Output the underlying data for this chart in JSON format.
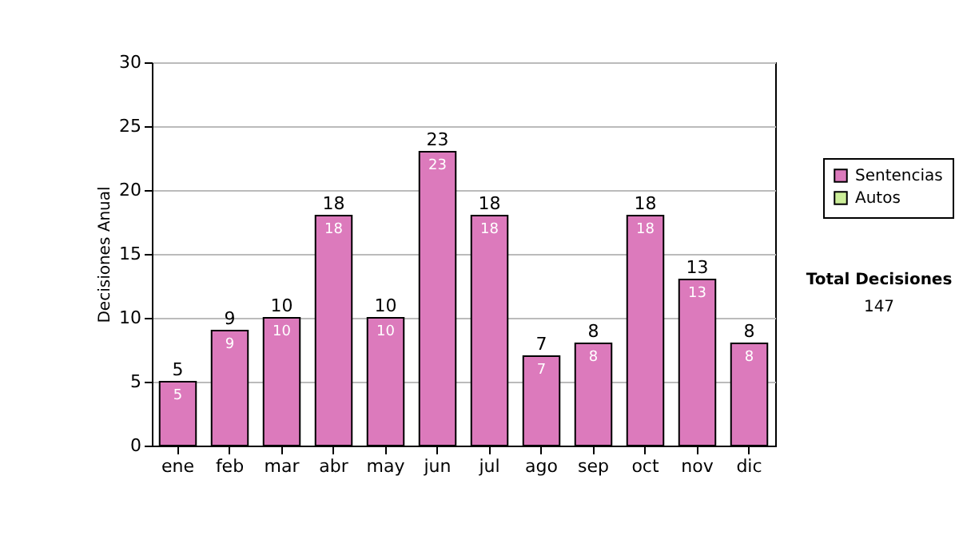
{
  "chart_data": {
    "type": "bar",
    "ylabel": "Decisiones Anual",
    "categories": [
      "ene",
      "feb",
      "mar",
      "abr",
      "may",
      "jun",
      "jul",
      "ago",
      "sep",
      "oct",
      "nov",
      "dic"
    ],
    "series": [
      {
        "name": "Sentencias",
        "color": "#dc7abc",
        "values": [
          5,
          9,
          10,
          18,
          10,
          23,
          18,
          7,
          8,
          18,
          13,
          8
        ]
      },
      {
        "name": "Autos",
        "color": "#ccee99",
        "values": [
          null,
          null,
          null,
          null,
          null,
          null,
          null,
          null,
          null,
          null,
          null,
          null
        ]
      }
    ],
    "stacked": true,
    "data_labels": true,
    "totals": [
      "5",
      "9",
      "10",
      "18",
      "10",
      "23",
      "18",
      "7",
      "8",
      "18",
      "13",
      "8"
    ],
    "ylim": [
      0,
      30
    ],
    "yticks": [
      0,
      5,
      10,
      15,
      20,
      25,
      30
    ],
    "grid": "y",
    "legend": "right",
    "annotations": [
      "Total Decisiones",
      "147"
    ]
  }
}
